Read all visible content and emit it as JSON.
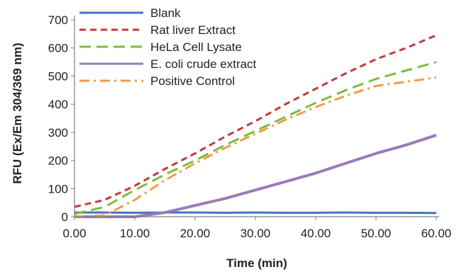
{
  "chart_data": {
    "type": "line",
    "xlabel": "Time (min)",
    "ylabel": "RFU (Ex/Em 304/369 nm)",
    "xlim": [
      0,
      60
    ],
    "ylim": [
      0,
      700
    ],
    "x_ticks": [
      "0.00",
      "10.00",
      "20.00",
      "30.00",
      "40.00",
      "50.00",
      "60.00"
    ],
    "y_ticks": [
      "0",
      "100",
      "200",
      "300",
      "400",
      "500",
      "600",
      "700"
    ],
    "legend_position": "top-left",
    "series": [
      {
        "name": "Blank",
        "color": "#4472C4",
        "style": "solid",
        "x": [
          0,
          5,
          10,
          15,
          20,
          25,
          30,
          35,
          40,
          45,
          50,
          55,
          60
        ],
        "y": [
          15,
          15,
          14,
          15,
          15,
          14,
          15,
          14,
          14,
          15,
          14,
          14,
          13
        ]
      },
      {
        "name": "Rat liver Extract",
        "color": "#C0393B",
        "style": "dash",
        "x": [
          0,
          5,
          10,
          15,
          20,
          25,
          30,
          35,
          40,
          45,
          50,
          55,
          60
        ],
        "y": [
          35,
          60,
          110,
          170,
          225,
          285,
          340,
          400,
          455,
          510,
          560,
          600,
          645
        ]
      },
      {
        "name": "HeLa Cell Lysate",
        "color": "#7DBB3F",
        "style": "longdash",
        "x": [
          0,
          5,
          10,
          15,
          20,
          25,
          30,
          35,
          40,
          45,
          50,
          55,
          60
        ],
        "y": [
          10,
          35,
          95,
          150,
          200,
          255,
          305,
          355,
          405,
          450,
          490,
          520,
          550
        ]
      },
      {
        "name": "E. coli crude extract",
        "color": "#9B7BB8",
        "style": "solid",
        "x": [
          0,
          10,
          15,
          20,
          25,
          30,
          35,
          40,
          45,
          50,
          55,
          60
        ],
        "y": [
          0,
          0,
          15,
          40,
          65,
          95,
          125,
          155,
          190,
          225,
          255,
          290
        ]
      },
      {
        "name": "Positive Control",
        "color": "#F39A45",
        "style": "dashdot",
        "x": [
          0,
          5,
          10,
          15,
          20,
          25,
          30,
          35,
          40,
          45,
          50,
          55,
          60
        ],
        "y": [
          0,
          5,
          60,
          130,
          190,
          245,
          295,
          345,
          390,
          430,
          465,
          480,
          495
        ]
      }
    ]
  }
}
